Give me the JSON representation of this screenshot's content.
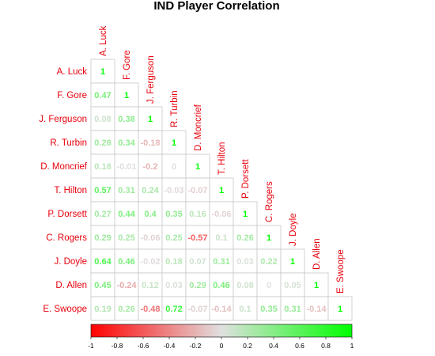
{
  "chart_data": {
    "type": "heatmap",
    "subtype": "correlation-lower-triangle",
    "title": "IND Player Correlation",
    "variables": [
      "A. Luck",
      "F. Gore",
      "J. Ferguson",
      "R. Turbin",
      "D. Moncrief",
      "T. Hilton",
      "P. Dorsett",
      "C. Rogers",
      "J. Doyle",
      "D. Allen",
      "E. Swoope"
    ],
    "matrix": [
      [
        "1"
      ],
      [
        "0.47",
        "1"
      ],
      [
        "0.08",
        "0.38",
        "1"
      ],
      [
        "0.28",
        "0.34",
        "-0.18",
        "1"
      ],
      [
        "0.18",
        "-0.01",
        "-0.2",
        "0",
        "1"
      ],
      [
        "0.57",
        "0.31",
        "0.24",
        "-0.03",
        "-0.07",
        "1"
      ],
      [
        "0.27",
        "0.44",
        "0.4",
        "0.35",
        "0.16",
        "-0.06",
        "1"
      ],
      [
        "0.29",
        "0.25",
        "-0.06",
        "0.25",
        "-0.57",
        "0.1",
        "0.26",
        "1"
      ],
      [
        "0.64",
        "0.46",
        "-0.02",
        "0.18",
        "0.07",
        "0.31",
        "0.03",
        "0.22",
        "1"
      ],
      [
        "0.45",
        "-0.24",
        "0.12",
        "0.03",
        "0.29",
        "0.46",
        "0.08",
        "0",
        "0.05",
        "1"
      ],
      [
        "0.19",
        "0.26",
        "-0.48",
        "0.72",
        "-0.07",
        "-0.14",
        "0.1",
        "0.35",
        "0.31",
        "-0.14",
        "1"
      ]
    ],
    "colorbar": {
      "min": -1,
      "max": 1,
      "ticks": [
        "-1",
        "-0.8",
        "-0.6",
        "-0.4",
        "-0.2",
        "0",
        "0.2",
        "0.4",
        "0.6",
        "0.8",
        "1"
      ],
      "colors": {
        "negative": "#ff0000",
        "zero": "#e0e0e0",
        "positive": "#00ff00"
      }
    },
    "label_color": "#e8000b",
    "grid": true
  }
}
